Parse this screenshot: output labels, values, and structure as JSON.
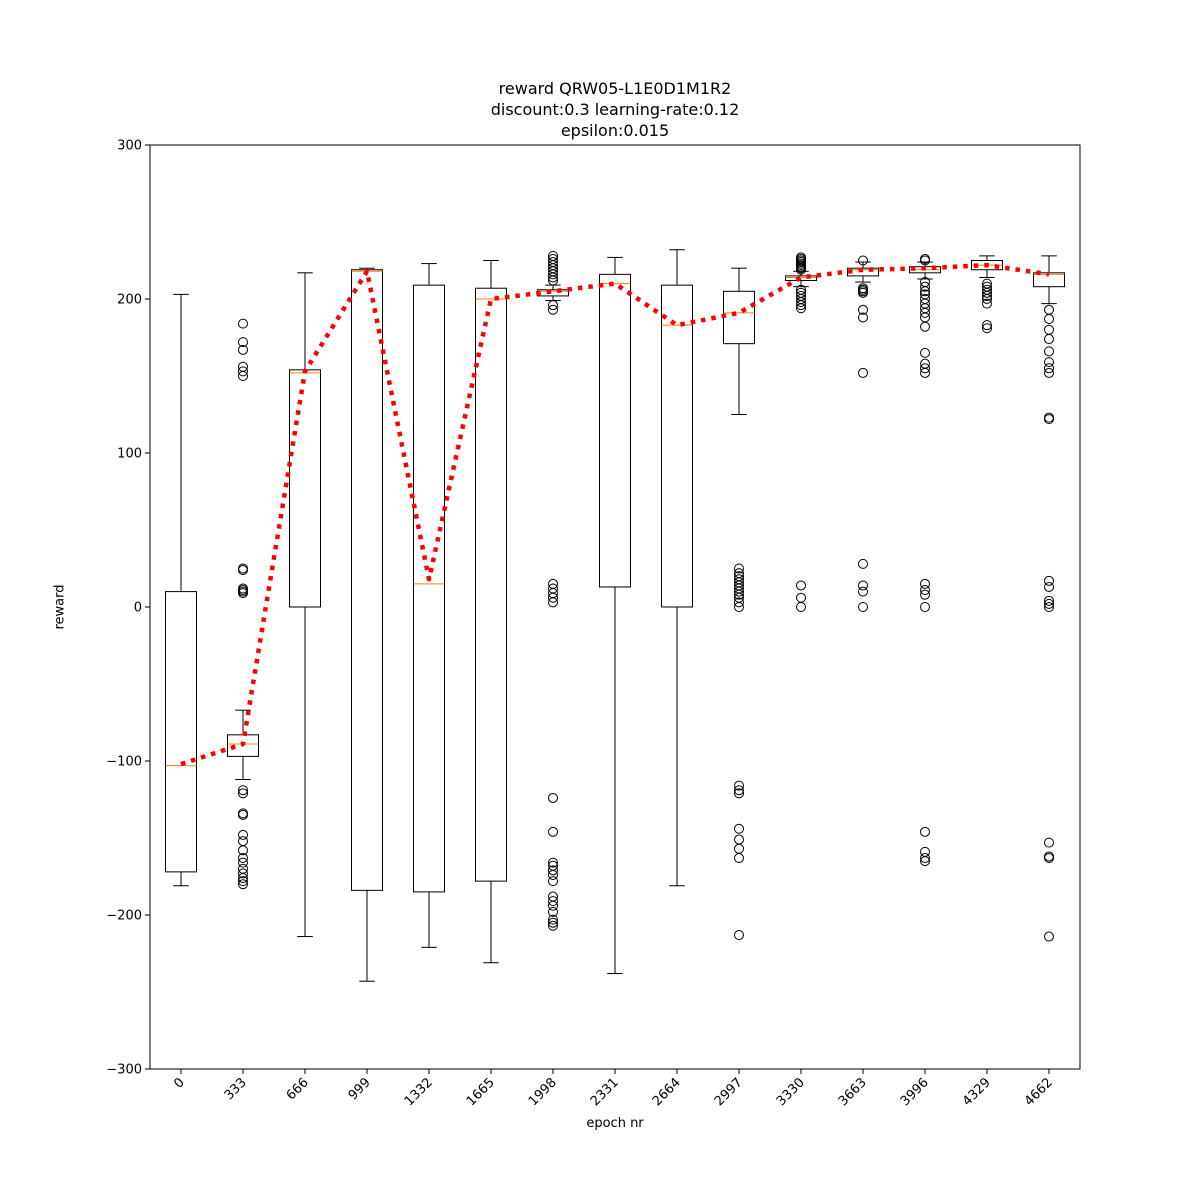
{
  "chart_data": {
    "type": "box",
    "title_lines": [
      "reward QRW05-L1E0D1M1R2",
      "discount:0.3 learning-rate:0.12",
      "epsilon:0.015"
    ],
    "xlabel": "epoch nr",
    "ylabel": "reward",
    "ylim": [
      -300,
      300
    ],
    "yticks": [
      -300,
      -200,
      -100,
      0,
      100,
      200,
      300
    ],
    "ytick_labels": [
      "−300",
      "−200",
      "−100",
      "0",
      "100",
      "200",
      "300"
    ],
    "categories": [
      "0",
      "333",
      "666",
      "999",
      "1332",
      "1665",
      "1998",
      "2331",
      "2664",
      "2997",
      "3330",
      "3663",
      "3996",
      "4329",
      "4662"
    ],
    "boxes": [
      {
        "whislo": -181,
        "q1": -172,
        "med": -103,
        "q3": 10,
        "whishi": 203,
        "fliers": []
      },
      {
        "whislo": -112,
        "q1": -97,
        "med": -89,
        "q3": -83,
        "whishi": -67,
        "fliers": [
          184,
          172,
          167,
          156,
          153,
          150,
          25,
          24,
          12,
          11,
          10,
          9,
          -119,
          -121,
          -134,
          -135,
          -148,
          -152,
          -158,
          -163,
          -166,
          -170,
          -173,
          -176,
          -178,
          -180
        ]
      },
      {
        "whislo": -214,
        "q1": 0,
        "med": 152,
        "q3": 154,
        "whishi": 217,
        "fliers": []
      },
      {
        "whislo": -243,
        "q1": -184,
        "med": 218,
        "q3": 219,
        "whishi": 220,
        "fliers": []
      },
      {
        "whislo": -221,
        "q1": -185,
        "med": 15,
        "q3": 209,
        "whishi": 223,
        "fliers": []
      },
      {
        "whislo": -231,
        "q1": -178,
        "med": 200,
        "q3": 207,
        "whishi": 225,
        "fliers": []
      },
      {
        "whislo": 199,
        "q1": 202,
        "med": 205,
        "q3": 206,
        "whishi": 209,
        "fliers": [
          228,
          226,
          224,
          222,
          220,
          218,
          216,
          214,
          212,
          196,
          193,
          15,
          12,
          9,
          6,
          3,
          -124,
          -146,
          -166,
          -168,
          -171,
          -174,
          -178,
          -188,
          -191,
          -194,
          -198,
          -203,
          -205,
          -207
        ]
      },
      {
        "whislo": -238,
        "q1": 13,
        "med": 210,
        "q3": 216,
        "whishi": 227,
        "fliers": []
      },
      {
        "whislo": -181,
        "q1": 0,
        "med": 183,
        "q3": 209,
        "whishi": 232,
        "fliers": []
      },
      {
        "whislo": 125,
        "q1": 171,
        "med": 191,
        "q3": 205,
        "whishi": 220,
        "fliers": [
          25,
          22,
          20,
          18,
          16,
          14,
          12,
          10,
          8,
          6,
          3,
          0,
          -116,
          -119,
          -121,
          -144,
          -151,
          -157,
          -163,
          -213
        ]
      },
      {
        "whislo": 208,
        "q1": 212,
        "med": 214,
        "q3": 215,
        "whishi": 218,
        "fliers": [
          227,
          226,
          225,
          224,
          223,
          222,
          221,
          220,
          219,
          206,
          204,
          202,
          200,
          198,
          196,
          194,
          14,
          6,
          0
        ]
      },
      {
        "whislo": 211,
        "q1": 215,
        "med": 219,
        "q3": 220,
        "whishi": 224,
        "fliers": [
          225,
          207,
          206,
          205,
          204,
          193,
          188,
          152,
          28,
          14,
          10,
          0
        ]
      },
      {
        "whislo": 213,
        "q1": 217,
        "med": 219,
        "q3": 221,
        "whishi": 224,
        "fliers": [
          226,
          225,
          211,
          208,
          205,
          203,
          200,
          197,
          194,
          191,
          188,
          182,
          165,
          158,
          155,
          152,
          15,
          11,
          8,
          0,
          -146,
          -159,
          -163,
          -165
        ]
      },
      {
        "whislo": 214,
        "q1": 219,
        "med": 222,
        "q3": 225,
        "whishi": 228,
        "fliers": [
          210,
          208,
          206,
          204,
          202,
          200,
          197,
          183,
          181
        ]
      },
      {
        "whislo": 197,
        "q1": 208,
        "med": 216,
        "q3": 217,
        "whishi": 228,
        "fliers": [
          193,
          187,
          180,
          174,
          166,
          159,
          155,
          152,
          123,
          122,
          17,
          13,
          4,
          2,
          0,
          -153,
          -162,
          -163,
          -214
        ]
      }
    ],
    "mean_line": {
      "name": "mean",
      "color": "#ff0000",
      "style": "dotted",
      "values": [
        -102,
        -89,
        153,
        218,
        18,
        200,
        205,
        210,
        183,
        191,
        214,
        219,
        220,
        222,
        216
      ]
    },
    "median_color": "#ff7f0e",
    "grid": false,
    "legend": false
  }
}
